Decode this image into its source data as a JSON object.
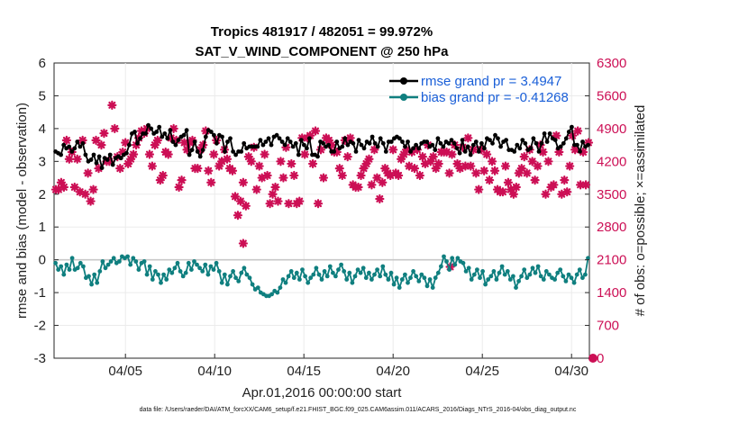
{
  "chart_data": {
    "type": "line",
    "title_line1": "Tropics 481917 / 482051 = 99.972%",
    "title_line2": "SAT_V_WIND_COMPONENT @ 250 hPa",
    "xlabel": "Apr.01,2016 00:00:00 start",
    "ylabel_left": "rmse and bias (model - observation)",
    "ylabel_right": "# of obs: o=possible; ×=assimilated",
    "footer": "data file: /Users/raeder/DAI/ATM_forcXX/CAM6_setup/f.e21.FHIST_BGC.f09_025.CAM6assim.011/ACARS_2016/Diags_NTrS_2016-04/obs_diag_output.nc",
    "x_tick_labels": [
      "04/05",
      "04/10",
      "04/15",
      "04/20",
      "04/25",
      "04/30"
    ],
    "x_tick_days": [
      5,
      10,
      15,
      20,
      25,
      30
    ],
    "xlim_days": [
      1,
      31
    ],
    "ylim_left": [
      -3,
      6
    ],
    "left_ticks": [
      "-3",
      "-2",
      "-1",
      "0",
      "1",
      "2",
      "3",
      "4",
      "5",
      "6"
    ],
    "ylim_right": [
      0,
      6300
    ],
    "right_ticks": [
      "0",
      "700",
      "1400",
      "2100",
      "2800",
      "3500",
      "4200",
      "4900",
      "5600",
      "6300"
    ],
    "colors": {
      "rmse": "#000000",
      "bias": "#0f7f7f",
      "obs": "#cc0f55",
      "zero_line": "#c8c8c8",
      "grid": "#ebebeb",
      "legend_text": "#1a5fd8"
    },
    "series": [
      {
        "name": "rmse",
        "legend": "rmse grand pr = 3.4947",
        "values": [
          3.3,
          3.25,
          3.2,
          3.5,
          3.4,
          3.45,
          3.3,
          3.4,
          3.6,
          3.45,
          3.55,
          3.2,
          3.0,
          3.05,
          3.2,
          2.95,
          3.15,
          2.8,
          3.1,
          3.05,
          3.2,
          2.9,
          3.1,
          3.15,
          3.1,
          3.2,
          3.25,
          3.5,
          3.85,
          3.9,
          3.55,
          3.7,
          3.85,
          3.85,
          4.1,
          4.0,
          3.85,
          3.9,
          4.05,
          3.75,
          3.85,
          3.7,
          3.95,
          3.6,
          3.5,
          3.65,
          3.75,
          3.8,
          3.95,
          3.2,
          3.35,
          3.6,
          3.3,
          3.15,
          3.35,
          3.75,
          3.95,
          3.9,
          3.8,
          3.55,
          3.8,
          3.75,
          3.3,
          3.6,
          3.7,
          3.3,
          3.2,
          3.3,
          3.3,
          3.55,
          3.4,
          3.45,
          3.45,
          3.45,
          3.45,
          3.65,
          3.5,
          3.6,
          3.7,
          3.5,
          3.75,
          3.8,
          3.7,
          3.6,
          3.5,
          3.7,
          3.6,
          3.45,
          3.55,
          3.2,
          3.65,
          3.5,
          3.4,
          3.7,
          3.2,
          3.2,
          3.15,
          3.6,
          3.55,
          3.45,
          3.5,
          3.3,
          3.3,
          3.6,
          3.4,
          3.45,
          3.7,
          3.5,
          3.6,
          3.55,
          3.3,
          3.65,
          3.5,
          3.4,
          3.6,
          3.55,
          3.75,
          3.55,
          3.45,
          3.7,
          3.55,
          3.3,
          3.6,
          3.6,
          3.7,
          3.75,
          3.7,
          3.6,
          3.45,
          3.6,
          3.3,
          3.4,
          3.5,
          3.4,
          3.55,
          3.6,
          3.6,
          3.45,
          3.5,
          3.35,
          3.7,
          3.55,
          3.45,
          3.6,
          3.55,
          3.65,
          3.55,
          3.4,
          3.25,
          3.65,
          3.3,
          3.45,
          3.2,
          3.5,
          3.6,
          3.3,
          3.55,
          3.4,
          3.7,
          3.65,
          3.55,
          3.8,
          3.7,
          3.45,
          3.6,
          3.65,
          3.35,
          3.35,
          3.3,
          3.5,
          3.4,
          3.65,
          3.55,
          3.35,
          3.4,
          3.7,
          3.55,
          3.3,
          3.55,
          3.85,
          3.6,
          3.85,
          3.7,
          3.65,
          3.4,
          3.45,
          3.55,
          3.7,
          3.9,
          4.05,
          3.5,
          3.5,
          3.3,
          3.6,
          3.45,
          3.5
        ]
      },
      {
        "name": "bias",
        "legend": "bias grand pr = -0.41268",
        "values": [
          -0.1,
          -0.3,
          -0.2,
          -0.45,
          -0.15,
          -0.3,
          0.05,
          -0.3,
          -0.25,
          -0.1,
          -0.2,
          -0.55,
          -0.5,
          -0.75,
          -0.45,
          -0.7,
          -0.35,
          -0.05,
          -0.25,
          -0.15,
          -0.05,
          0.05,
          -0.1,
          -0.05,
          0.1,
          0.05,
          0.1,
          -0.15,
          0.05,
          -0.05,
          -0.3,
          -0.1,
          -0.05,
          -0.45,
          -0.2,
          -0.6,
          -0.35,
          -0.45,
          -0.7,
          -0.45,
          -0.6,
          -0.3,
          -0.4,
          -0.25,
          -0.1,
          -0.35,
          -0.5,
          -0.4,
          -0.1,
          -0.3,
          -0.05,
          -0.15,
          -0.25,
          -0.35,
          -0.15,
          -0.45,
          -0.2,
          -0.3,
          -0.1,
          -0.35,
          -0.7,
          -0.45,
          -0.75,
          -0.5,
          -0.35,
          -0.55,
          -0.65,
          -0.4,
          -0.25,
          -0.45,
          -0.55,
          -0.75,
          -0.9,
          -0.85,
          -1.0,
          -1.05,
          -1.1,
          -1.1,
          -1.05,
          -0.95,
          -1.0,
          -0.85,
          -0.6,
          -0.7,
          -0.5,
          -0.35,
          -0.55,
          -0.4,
          -0.6,
          -0.3,
          -0.5,
          -0.7,
          -0.55,
          -0.45,
          -0.25,
          -0.45,
          -0.6,
          -0.35,
          -0.5,
          -0.2,
          -0.4,
          -0.5,
          -0.3,
          -0.15,
          -0.35,
          -0.6,
          -0.4,
          -0.7,
          -0.5,
          -0.3,
          -0.4,
          -0.25,
          -0.55,
          -0.4,
          -0.6,
          -0.45,
          -0.3,
          -0.5,
          -0.2,
          -0.45,
          -0.6,
          -0.4,
          -0.75,
          -0.55,
          -0.85,
          -0.6,
          -0.45,
          -0.7,
          -0.55,
          -0.35,
          -0.5,
          -0.65,
          -0.45,
          -0.55,
          -0.8,
          -0.6,
          -0.85,
          -0.55,
          -0.4,
          -0.2,
          0.1,
          -0.05,
          -0.3,
          0.05,
          -0.15,
          0.05,
          -0.05,
          -0.1,
          -0.35,
          -0.25,
          -0.6,
          -0.45,
          -0.3,
          -0.55,
          -0.35,
          -0.75,
          -0.6,
          -0.5,
          -0.35,
          -0.6,
          -0.4,
          -0.2,
          -0.45,
          -0.35,
          -0.6,
          -0.5,
          -0.85,
          -0.65,
          -0.5,
          -0.3,
          -0.55,
          -0.45,
          -0.25,
          -0.4,
          -0.2,
          -0.5,
          -0.6,
          -0.35,
          -0.45,
          -0.55,
          -0.6,
          -0.4,
          -0.3,
          -0.5,
          -0.65,
          -0.45,
          -0.55,
          -0.7,
          -0.45,
          -0.3,
          -0.55,
          -0.45,
          0.05
        ]
      }
    ],
    "obs_counts": [
      3600,
      3600,
      3750,
      3650,
      4650,
      4250,
      4400,
      3650,
      4250,
      3550,
      4650,
      3500,
      3950,
      3350,
      3600,
      4650,
      4050,
      4550,
      4800,
      4200,
      4200,
      5400,
      4900,
      4300,
      4050,
      4400,
      4600,
      4150,
      4250,
      4350,
      4550,
      4700,
      4850,
      4800,
      4900,
      4350,
      4100,
      4550,
      4650,
      3800,
      3900,
      4400,
      4350,
      4700,
      4900,
      4650,
      3650,
      3800,
      4600,
      4450,
      4600,
      4650,
      4050,
      4050,
      4450,
      4550,
      4850,
      4000,
      3750,
      4350,
      4650,
      4100,
      4200,
      4450,
      4250,
      4050,
      4000,
      3450,
      3050,
      3350,
      3750,
      3250,
      4300,
      4200,
      4500,
      3600,
      4100,
      3850,
      4350,
      3900,
      3300,
      3500,
      3650,
      3350,
      4200,
      3850,
      4500,
      3300,
      4150,
      3900,
      3300,
      3350,
      4700,
      4350,
      4700,
      4750,
      4150,
      4850,
      3300,
      4450,
      3850,
      4700,
      4650,
      4550,
      4400,
      4400,
      4050,
      3900,
      4650,
      4300,
      4700,
      3700,
      3650,
      3650,
      3900,
      4050,
      4150,
      4250,
      3700,
      4450,
      3850,
      3400,
      3750,
      4050,
      3950,
      3900,
      4450,
      3950,
      3900,
      4250,
      4350,
      4450,
      4100,
      4400,
      4050,
      4450,
      3900,
      4300,
      4150,
      4550,
      4200,
      4300,
      4050,
      4150,
      4400,
      4400,
      4400,
      3950,
      4350,
      4550,
      4150,
      4050,
      4500,
      4100,
      4700,
      4100,
      4450,
      3950,
      3600,
      4450,
      4000,
      4350,
      3800,
      4200,
      4000,
      3600,
      3550,
      3550,
      4100,
      3750,
      3600,
      3500,
      3650,
      3950,
      4050,
      4300,
      3950,
      4450,
      4200,
      3800,
      4100,
      4550,
      4400,
      3500,
      4200,
      3650,
      3700,
      4750,
      4400,
      3500,
      3800,
      3550,
      4100,
      4750,
      4450,
      4850,
      3700,
      4400,
      3700,
      4600
    ],
    "obs_isolated": [
      {
        "day": 11.6,
        "count": 2450
      },
      {
        "day": 23.2,
        "count": 1950
      },
      {
        "day": 31.2,
        "count": 0
      }
    ]
  }
}
